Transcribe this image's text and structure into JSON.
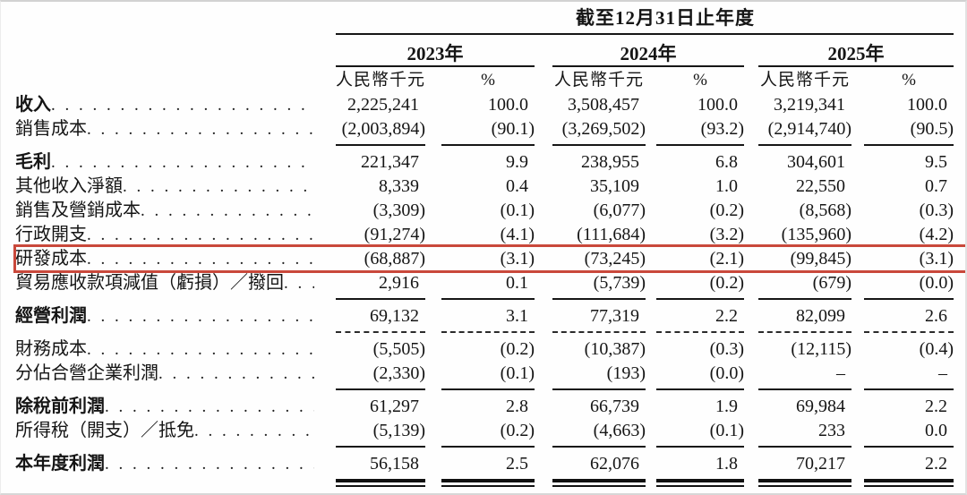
{
  "table": {
    "period_header": "截至12月31日止年度",
    "years": [
      "2023年",
      "2024年",
      "2025年"
    ],
    "unit_label": "人民幣千元",
    "percent_label": "%",
    "highlight_border_color": "#c9483b",
    "rows": [
      {
        "label": "收入",
        "values": [
          "2,225,241",
          "100.0",
          "3,508,457",
          "100.0",
          "3,219,341",
          "100.0"
        ]
      },
      {
        "label": "銷售成本",
        "values": [
          "(2,003,894)",
          "(90.1)",
          "(3,269,502)",
          "(93.2)",
          "(2,914,740)",
          "(90.5)"
        ]
      },
      {
        "label": "毛利",
        "values": [
          "221,347",
          "9.9",
          "238,955",
          "6.8",
          "304,601",
          "9.5"
        ]
      },
      {
        "label": "其他收入淨額",
        "values": [
          "8,339",
          "0.4",
          "35,109",
          "1.0",
          "22,550",
          "0.7"
        ]
      },
      {
        "label": "銷售及營銷成本",
        "values": [
          "(3,309)",
          "(0.1)",
          "(6,077)",
          "(0.2)",
          "(8,568)",
          "(0.3)"
        ]
      },
      {
        "label": "行政開支",
        "values": [
          "(91,274)",
          "(4.1)",
          "(111,684)",
          "(3.2)",
          "(135,960)",
          "(4.2)"
        ]
      },
      {
        "label": "研發成本",
        "values": [
          "(68,887)",
          "(3.1)",
          "(73,245)",
          "(2.1)",
          "(99,845)",
          "(3.1)"
        ]
      },
      {
        "label": "貿易應收款項減值（虧損）／撥回",
        "values": [
          "2,916",
          "0.1",
          "(5,739)",
          "(0.2)",
          "(679)",
          "(0.0)"
        ]
      },
      {
        "label": "經營利潤",
        "values": [
          "69,132",
          "3.1",
          "77,319",
          "2.2",
          "82,099",
          "2.6"
        ]
      },
      {
        "label": "財務成本",
        "values": [
          "(5,505)",
          "(0.2)",
          "(10,387)",
          "(0.3)",
          "(12,115)",
          "(0.4)"
        ]
      },
      {
        "label": "分佔合營企業利潤",
        "values": [
          "(2,330)",
          "(0.1)",
          "(193)",
          "(0.0)",
          "–",
          "–"
        ]
      },
      {
        "label": "除稅前利潤",
        "values": [
          "61,297",
          "2.8",
          "66,739",
          "1.9",
          "69,984",
          "2.2"
        ]
      },
      {
        "label": "所得稅（開支）／抵免",
        "values": [
          "(5,139)",
          "(0.2)",
          "(4,663)",
          "(0.1)",
          "233",
          "0.0"
        ]
      },
      {
        "label": "本年度利潤",
        "values": [
          "56,158",
          "2.5",
          "62,076",
          "1.8",
          "70,217",
          "2.2"
        ]
      }
    ]
  }
}
